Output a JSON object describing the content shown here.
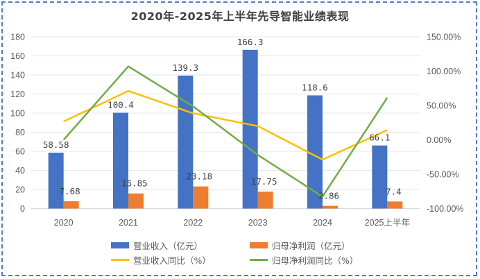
{
  "chart_data": {
    "type": "bar",
    "title": "2020年-2025年上半年先导智能业绩表现",
    "categories": [
      "2020",
      "2021",
      "2022",
      "2023",
      "2024",
      "2025上半年"
    ],
    "series": [
      {
        "name": "营业收入（亿元）",
        "type": "bar",
        "axis": "left",
        "color": "#4472c4",
        "values": [
          58.58,
          100.4,
          139.3,
          166.3,
          118.6,
          66.1
        ],
        "labels": [
          "58.58",
          "100.4",
          "139.3",
          "166.3",
          "118.6",
          "66.1"
        ]
      },
      {
        "name": "归母净利润（亿元）",
        "type": "bar",
        "axis": "left",
        "color": "#ed7d31",
        "values": [
          7.68,
          15.85,
          23.18,
          17.75,
          2.86,
          7.4
        ],
        "labels": [
          "7.68",
          "15.85",
          "23.18",
          "17.75",
          "2.86",
          "7.4"
        ]
      },
      {
        "name": "营业收入同比（%）",
        "type": "line",
        "axis": "right",
        "color": "#ffc000",
        "values": [
          26.8,
          71.2,
          38.6,
          20.0,
          -28.8,
          14.3
        ]
      },
      {
        "name": "归母净利润同比（%）",
        "type": "line",
        "axis": "right",
        "color": "#70ad47",
        "values": [
          0.0,
          106.9,
          48.7,
          -22.0,
          -82.6,
          61.4
        ]
      }
    ],
    "left_axis": {
      "min": 0,
      "max": 180,
      "step": 20,
      "ticks": [
        "0",
        "20",
        "40",
        "60",
        "80",
        "100",
        "120",
        "140",
        "160",
        "180"
      ]
    },
    "right_axis": {
      "min": -100,
      "max": 150,
      "step": 50,
      "ticks": [
        "-100.00%",
        "-50.00%",
        "0.00%",
        "50.00%",
        "100.00%",
        "150.00%"
      ]
    },
    "xlabel": "",
    "ylabel": "",
    "grid": true,
    "legend_position": "bottom"
  }
}
